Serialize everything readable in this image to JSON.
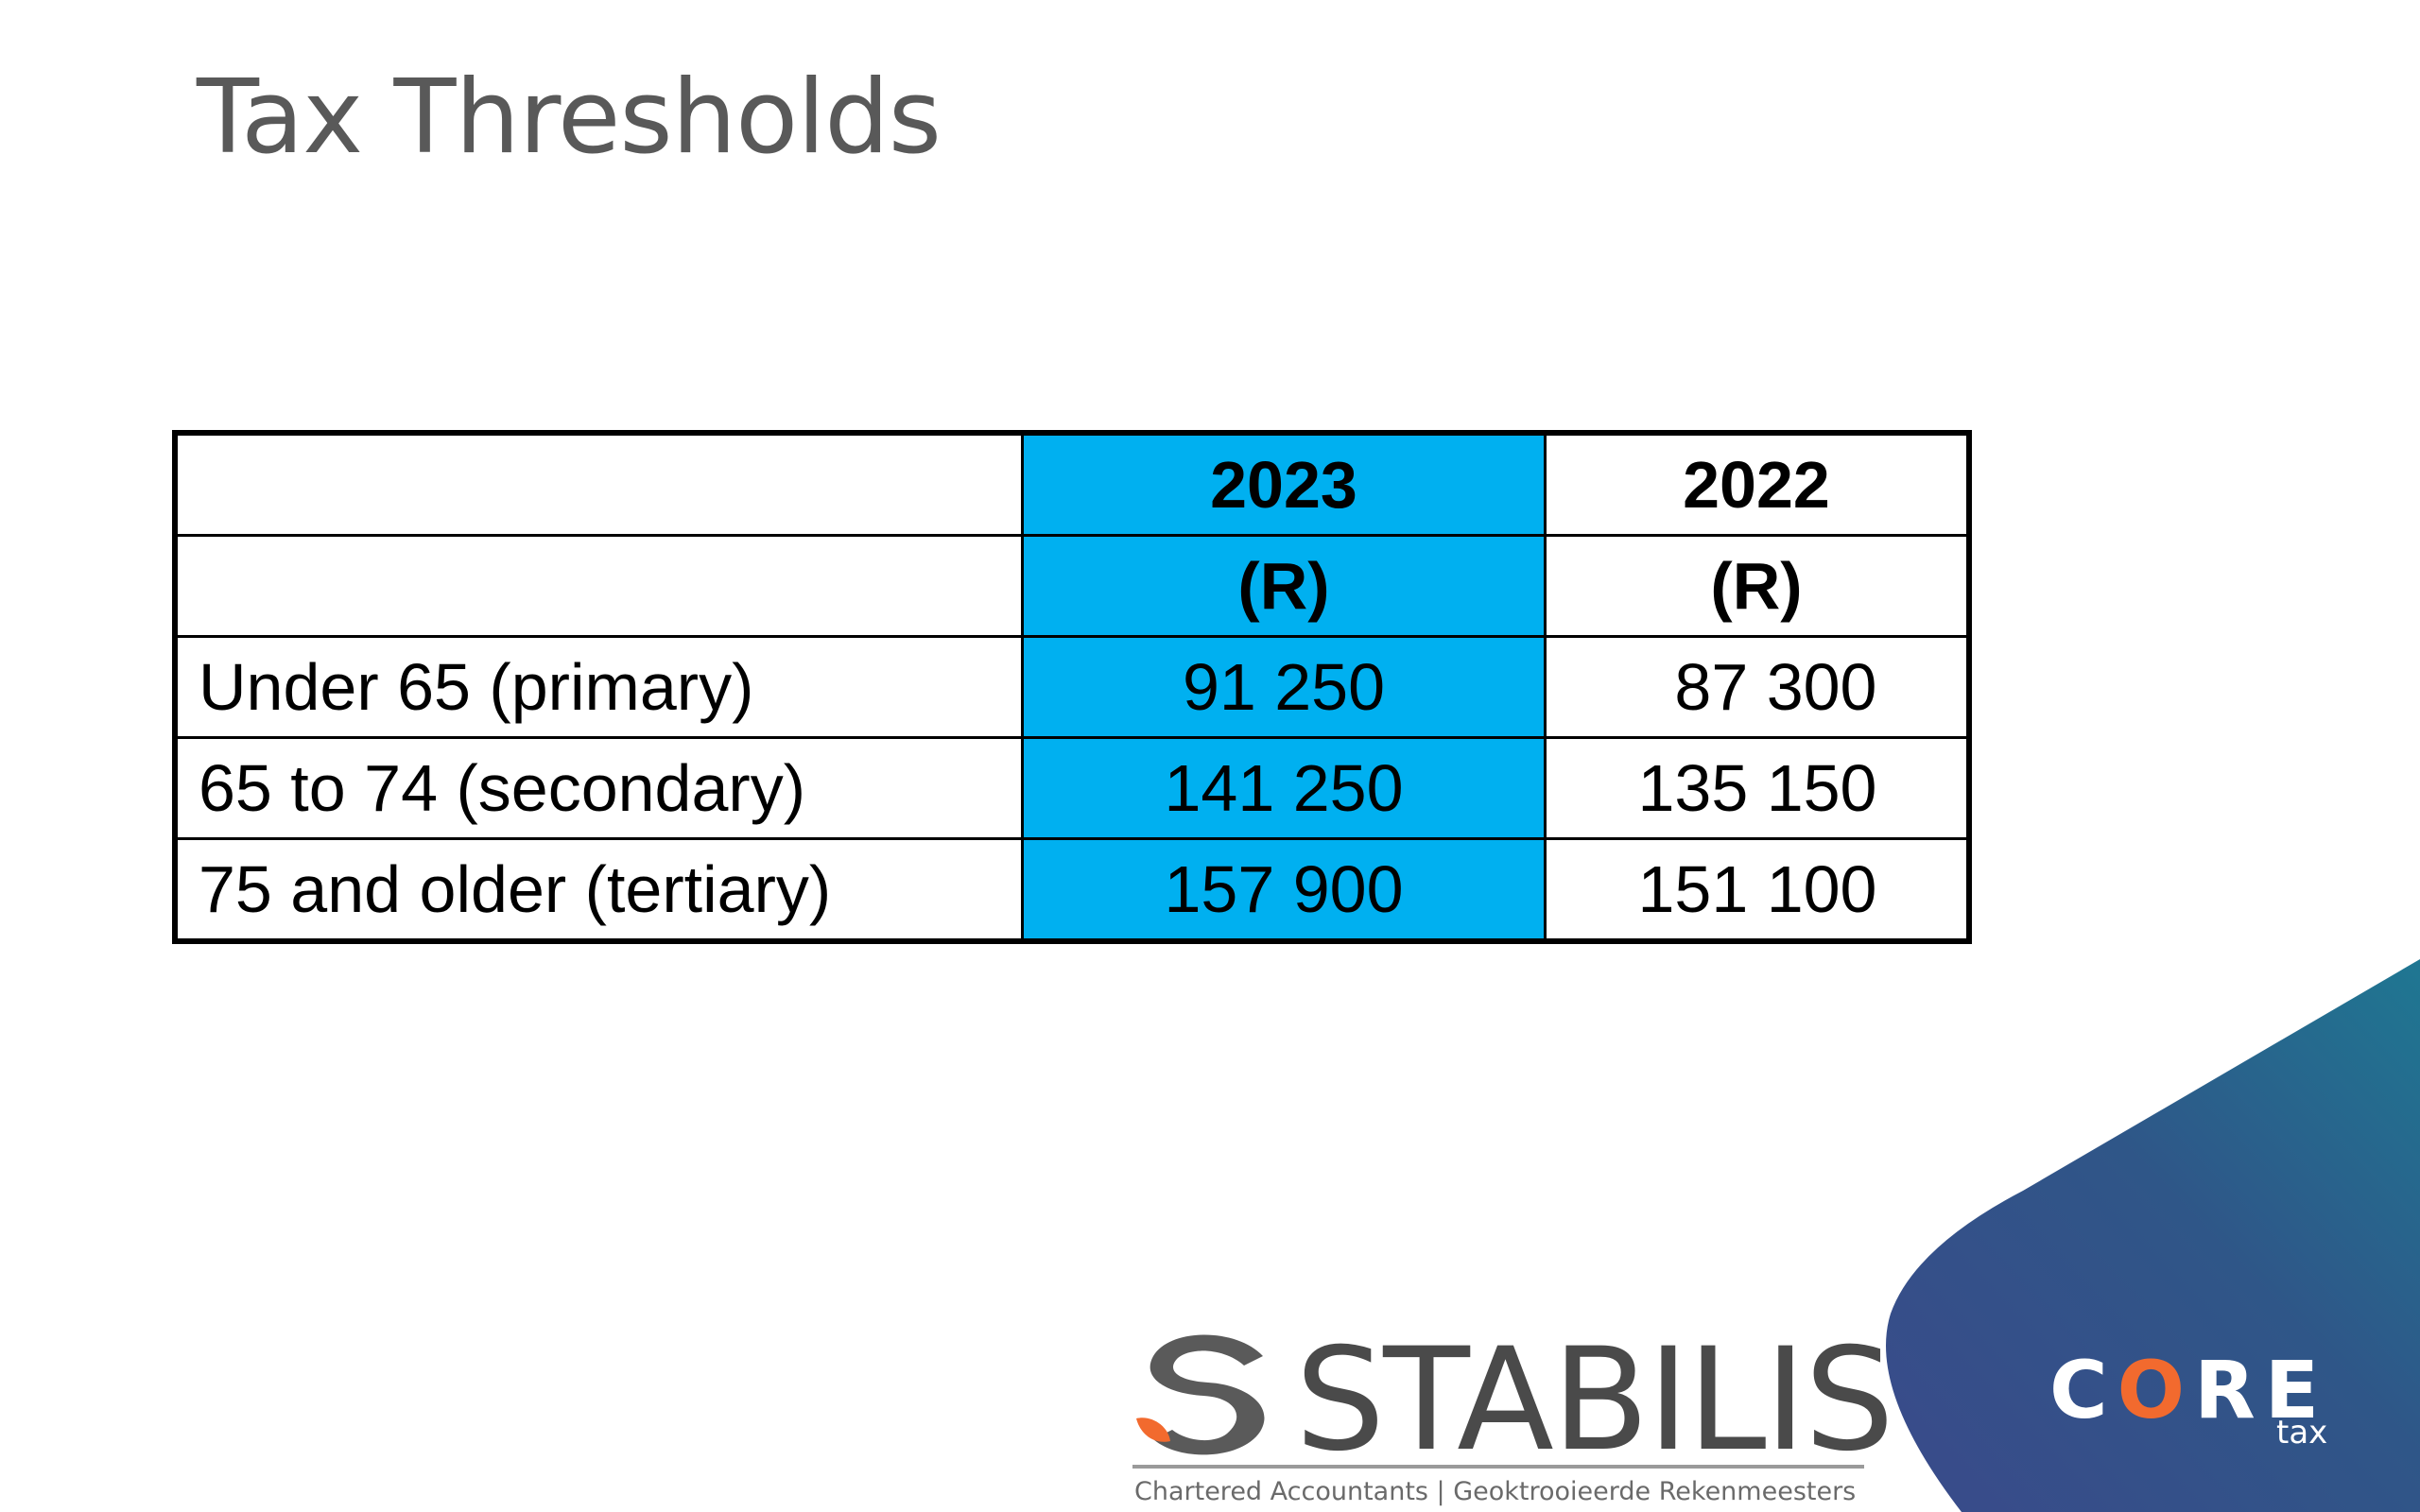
{
  "slide": {
    "title": "Tax Thresholds"
  },
  "table": {
    "header_years": {
      "current": "2023",
      "previous": "2022"
    },
    "header_units": {
      "current": "(R)",
      "previous": "(R)"
    },
    "rows": [
      {
        "label": "Under 65 (primary)",
        "y2023": "91 250",
        "y2022": "87 300"
      },
      {
        "label": "65 to 74 (secondary)",
        "y2023": "141 250",
        "y2022": "135 150"
      },
      {
        "label": "75 and older (tertiary)",
        "y2023": "157 900",
        "y2022": "151 100"
      }
    ]
  },
  "branding": {
    "stabilis_name": "STABILIS",
    "stabilis_tagline": "Chartered Accountants | Geoktrooieerde Rekenmeesters",
    "core_c": "C",
    "core_o": "O",
    "core_re": "RE",
    "core_sub": "tax"
  },
  "colors": {
    "highlight_2023": "#00b0f0",
    "accent_2022": "#ed7d31",
    "core_navy": "#2f4f86",
    "core_teal": "#226c8f"
  }
}
